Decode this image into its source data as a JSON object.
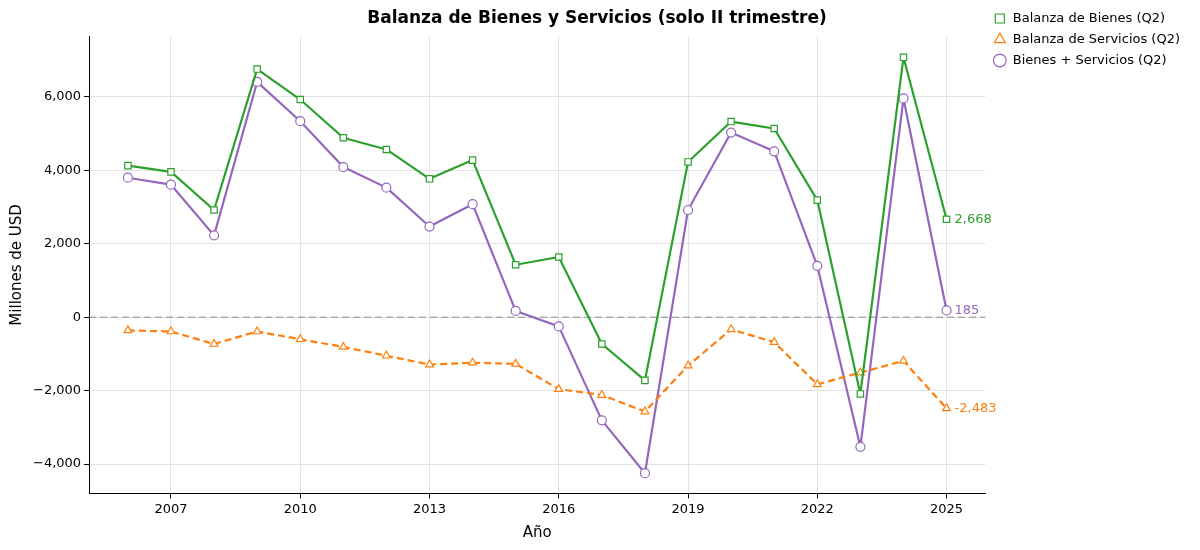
{
  "chart_data": {
    "type": "line",
    "title": "Balanza de Bienes y Servicios (solo II trimestre)",
    "xlabel": "Año",
    "ylabel": "Millones de USD",
    "x": [
      2006,
      2007,
      2008,
      2009,
      2010,
      2011,
      2012,
      2013,
      2014,
      2015,
      2016,
      2017,
      2018,
      2019,
      2020,
      2021,
      2022,
      2023,
      2024,
      2025
    ],
    "series": [
      {
        "name": "Balanza de Bienes (Q2)",
        "color": "#2ca02c",
        "marker": "square",
        "line_style": "solid",
        "values": [
          4130,
          3960,
          2920,
          6760,
          5930,
          4890,
          4570,
          3770,
          4280,
          1430,
          1640,
          -730,
          -1720,
          4230,
          5330,
          5140,
          3190,
          -2090,
          7080,
          2668
        ],
        "value_labels": [
          null,
          null,
          null,
          null,
          null,
          null,
          null,
          null,
          null,
          null,
          null,
          null,
          null,
          null,
          null,
          null,
          null,
          null,
          null,
          "2,668"
        ]
      },
      {
        "name": "Balanza de Servicios (Q2)",
        "color": "#ff7f0e",
        "marker": "triangle",
        "line_style": "dashed",
        "values": [
          -360,
          -390,
          -730,
          -390,
          -600,
          -810,
          -1050,
          -1290,
          -1240,
          -1270,
          -1960,
          -2120,
          -2570,
          -1320,
          -330,
          -680,
          -1830,
          -1510,
          -1190,
          -2483
        ],
        "value_labels": [
          null,
          null,
          null,
          null,
          null,
          null,
          null,
          null,
          null,
          null,
          null,
          null,
          null,
          null,
          null,
          null,
          null,
          null,
          null,
          "-2,483"
        ]
      },
      {
        "name": "Bienes + Servicios (Q2)",
        "color": "#9467bd",
        "marker": "circle",
        "line_style": "solid",
        "values": [
          3800,
          3610,
          2230,
          6410,
          5340,
          4090,
          3530,
          2470,
          3080,
          170,
          -250,
          -2810,
          -4250,
          2920,
          5030,
          4520,
          1400,
          -3530,
          5960,
          185
        ],
        "value_labels": [
          null,
          null,
          null,
          null,
          null,
          null,
          null,
          null,
          null,
          null,
          null,
          null,
          null,
          null,
          null,
          null,
          null,
          null,
          null,
          "185"
        ]
      }
    ],
    "xlim": [
      2005.1,
      2025.9
    ],
    "xticks": [
      2007,
      2010,
      2013,
      2016,
      2019,
      2022,
      2025
    ],
    "ylim": [
      -4800,
      7650
    ],
    "yticks": [
      {
        "value": -4000,
        "label": "−4,000"
      },
      {
        "value": -2000,
        "label": "−2,000"
      },
      {
        "value": 0,
        "label": "0"
      },
      {
        "value": 2000,
        "label": "2,000"
      },
      {
        "value": 4000,
        "label": "4,000"
      },
      {
        "value": 6000,
        "label": "6,000"
      }
    ],
    "ref_lines": [
      {
        "axis": "y",
        "value": 0,
        "color": "#888888",
        "line_style": "dashed"
      }
    ],
    "grid": true,
    "legend": "top right"
  }
}
